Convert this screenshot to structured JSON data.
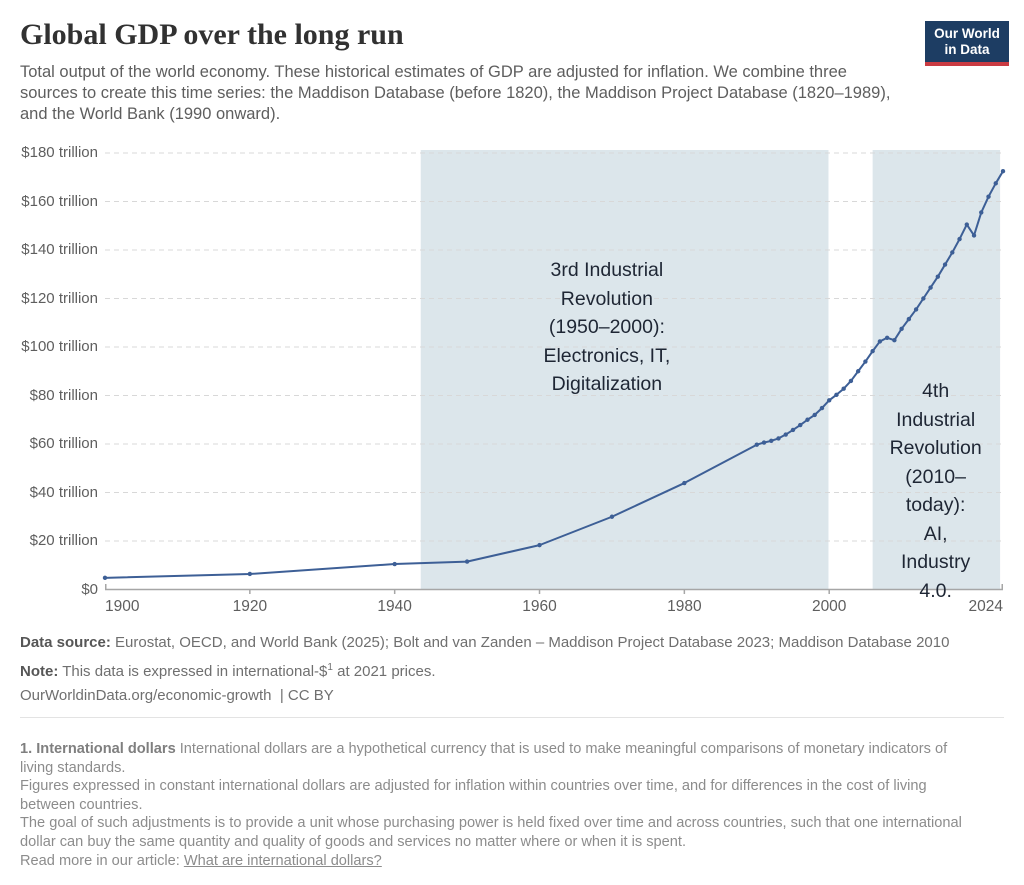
{
  "header": {
    "title": "Global GDP over the long run",
    "subtitle": "Total output of the world economy. These historical estimates of GDP are adjusted for inflation. We combine three sources to create this time series: the Maddison Database (before 1820), the Maddison Project Database (1820–1989), and the World Bank (1990 onward).",
    "logo": {
      "line1": "Our World",
      "line2": "in Data",
      "bg_color": "#1d3d63",
      "accent_color": "#ca3b42"
    }
  },
  "chart_data": {
    "type": "line",
    "title": "Global GDP over the long run",
    "unit": "trillion international-$ (2021 prices)",
    "xlabel": "",
    "ylabel": "",
    "xlim": [
      1900,
      2024
    ],
    "ylim": [
      0,
      180
    ],
    "grid": "dashed horizontal gridlines",
    "legend": "none",
    "x_ticks": [
      1900,
      1920,
      1940,
      1960,
      1980,
      2000,
      2024
    ],
    "y_ticks": [
      0,
      20,
      40,
      60,
      80,
      100,
      120,
      140,
      160,
      180
    ],
    "y_tick_labels": [
      "$0",
      "$20 trillion",
      "$40 trillion",
      "$60 trillion",
      "$80 trillion",
      "$100 trillion",
      "$120 trillion",
      "$140 trillion",
      "$160 trillion",
      "$180 trillion"
    ],
    "line_color": "#3d5f96",
    "band_color": "#dce6eb",
    "grid_color": "#d8d8d8",
    "axis_color": "#a6a6a6",
    "series": [
      {
        "name": "World GDP",
        "color": "#3d5f96",
        "x": [
          1900,
          1920,
          1940,
          1950,
          1960,
          1970,
          1980,
          1990,
          1991,
          1992,
          1993,
          1994,
          1995,
          1996,
          1997,
          1998,
          1999,
          2000,
          2001,
          2002,
          2003,
          2004,
          2005,
          2006,
          2007,
          2008,
          2009,
          2010,
          2011,
          2012,
          2013,
          2014,
          2015,
          2016,
          2017,
          2018,
          2019,
          2020,
          2021,
          2022,
          2023,
          2024
        ],
        "y": [
          4.8,
          6.4,
          10.5,
          11.5,
          18.3,
          30,
          43.9,
          59.7,
          60.6,
          61.3,
          62.3,
          63.9,
          65.8,
          67.8,
          70,
          72,
          74.8,
          78,
          80.3,
          82.8,
          86,
          90,
          94,
          98.3,
          102.3,
          103.8,
          102.8,
          107.5,
          111.5,
          115.5,
          120,
          124.5,
          129,
          134,
          139,
          144.5,
          150.5,
          146,
          155.5,
          162,
          167.5,
          172.5
        ]
      }
    ],
    "annotations": [
      {
        "id": "3rd-industrial-revolution",
        "text": "3rd Industrial Revolution (1950–2000): Electronics, IT, Digitalization",
        "lines": [
          "3rd Industrial",
          "Revolution",
          "(1950–2000):",
          "Electronics, IT,",
          "Digitalization"
        ],
        "x_range": [
          1943.6,
          1999.9
        ],
        "label_center": {
          "year": 1969.3,
          "value": 108.2
        }
      },
      {
        "id": "4th-industrial-revolution",
        "text": "4th Industrial Revolution (2010–today): AI, Industry 4.0.",
        "lines": [
          "4th Industrial",
          "Revolution",
          "(2010–today):",
          "AI, Industry",
          "4.0."
        ],
        "x_range": [
          2006.0,
          2023.6
        ],
        "label_center": {
          "year": 2014.7,
          "value": 40.6
        }
      }
    ]
  },
  "footer": {
    "data_source_label": "Data source:",
    "data_source_text": " Eurostat, OECD, and World Bank (2025); Bolt and van Zanden – Maddison Project Database 2023; Maddison Database 2010",
    "note_label": "Note:",
    "note_text_pre": " This data is expressed in international-$",
    "note_sup": "1",
    "note_text_post": " at 2021 prices.",
    "url_text": "OurWorldinData.org/economic-growth",
    "license_text": "  | CC BY"
  },
  "footnote": {
    "heading": "1. International dollars",
    "p1": " International dollars are a hypothetical currency that is used to make meaningful comparisons of monetary indicators of living standards.",
    "p2": "Figures expressed in constant international dollars are adjusted for inflation within countries over time, and for differences in the cost of living between countries.",
    "p3": "The goal of such adjustments is to provide a unit whose purchasing power is held fixed over time and across countries, such that one international dollar can buy the same quantity and quality of goods and services no matter where or when it is spent.",
    "read_more": "Read more in our article: ",
    "link_text": "What are international dollars?"
  }
}
